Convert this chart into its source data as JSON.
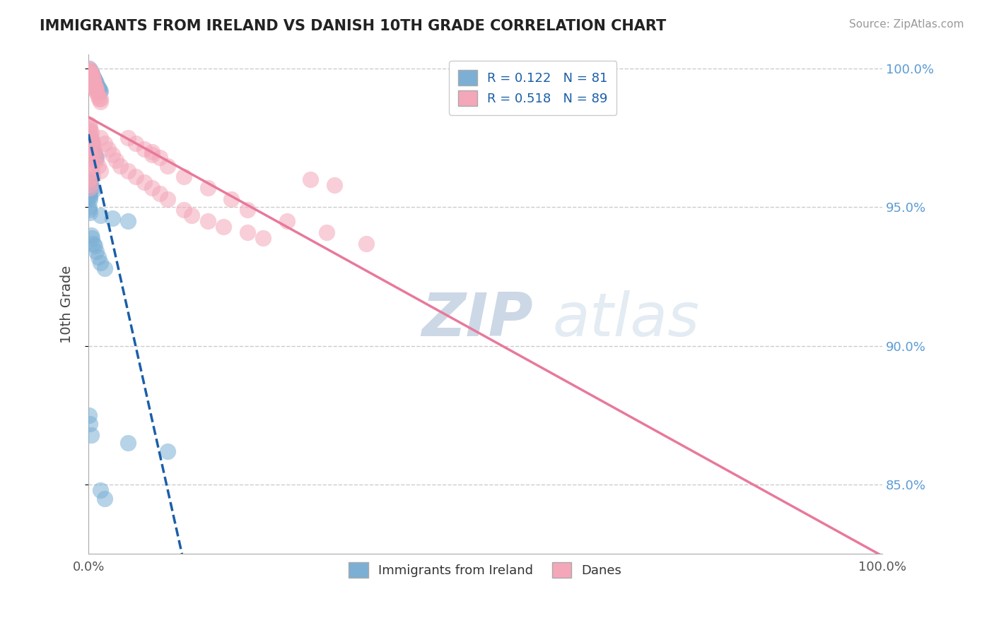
{
  "title": "IMMIGRANTS FROM IRELAND VS DANISH 10TH GRADE CORRELATION CHART",
  "source": "Source: ZipAtlas.com",
  "legend_blue_label": "Immigrants from Ireland",
  "legend_pink_label": "Danes",
  "ylabel": "10th Grade",
  "R_blue": 0.122,
  "N_blue": 81,
  "R_pink": 0.518,
  "N_pink": 89,
  "blue_color": "#7bafd4",
  "pink_color": "#f4a7b9",
  "blue_line_color": "#1a5fa8",
  "pink_line_color": "#e8799a",
  "watermark_zip": "ZIP",
  "watermark_atlas": "atlas",
  "background": "#ffffff",
  "xlim": [
    0.0,
    1.0
  ],
  "ylim": [
    0.825,
    1.005
  ],
  "yticks": [
    0.85,
    0.9,
    0.95,
    1.0
  ],
  "ytick_labels": [
    "85.0%",
    "90.0%",
    "95.0%",
    "100.0%"
  ],
  "blue_x": [
    0.001,
    0.001,
    0.001,
    0.001,
    0.001,
    0.001,
    0.002,
    0.002,
    0.002,
    0.002,
    0.003,
    0.003,
    0.003,
    0.003,
    0.004,
    0.004,
    0.004,
    0.005,
    0.005,
    0.005,
    0.006,
    0.006,
    0.006,
    0.007,
    0.007,
    0.008,
    0.008,
    0.009,
    0.009,
    0.01,
    0.01,
    0.011,
    0.012,
    0.013,
    0.014,
    0.015,
    0.001,
    0.001,
    0.002,
    0.002,
    0.003,
    0.003,
    0.004,
    0.005,
    0.005,
    0.006,
    0.007,
    0.008,
    0.009,
    0.01,
    0.001,
    0.001,
    0.002,
    0.003,
    0.004,
    0.005,
    0.001,
    0.001,
    0.002,
    0.002,
    0.001,
    0.001,
    0.002,
    0.015,
    0.03,
    0.05,
    0.003,
    0.004,
    0.006,
    0.008,
    0.01,
    0.012,
    0.015,
    0.02,
    0.001,
    0.002,
    0.003,
    0.05,
    0.1,
    0.015,
    0.02
  ],
  "blue_y": [
    1.0,
    0.999,
    0.999,
    0.999,
    0.998,
    0.998,
    0.999,
    0.998,
    0.998,
    0.997,
    0.999,
    0.998,
    0.997,
    0.997,
    0.998,
    0.997,
    0.997,
    0.997,
    0.997,
    0.996,
    0.997,
    0.996,
    0.996,
    0.996,
    0.995,
    0.996,
    0.995,
    0.995,
    0.994,
    0.995,
    0.994,
    0.994,
    0.993,
    0.993,
    0.992,
    0.992,
    0.975,
    0.974,
    0.975,
    0.973,
    0.974,
    0.972,
    0.972,
    0.973,
    0.971,
    0.97,
    0.97,
    0.969,
    0.968,
    0.968,
    0.96,
    0.959,
    0.959,
    0.958,
    0.957,
    0.956,
    0.955,
    0.954,
    0.954,
    0.953,
    0.95,
    0.949,
    0.948,
    0.947,
    0.946,
    0.945,
    0.94,
    0.939,
    0.937,
    0.936,
    0.934,
    0.932,
    0.93,
    0.928,
    0.875,
    0.872,
    0.868,
    0.865,
    0.862,
    0.848,
    0.845
  ],
  "pink_x": [
    0.001,
    0.001,
    0.001,
    0.001,
    0.001,
    0.002,
    0.002,
    0.002,
    0.002,
    0.003,
    0.003,
    0.003,
    0.004,
    0.004,
    0.004,
    0.005,
    0.005,
    0.005,
    0.006,
    0.006,
    0.007,
    0.007,
    0.008,
    0.008,
    0.009,
    0.01,
    0.01,
    0.011,
    0.012,
    0.013,
    0.015,
    0.015,
    0.001,
    0.001,
    0.002,
    0.002,
    0.003,
    0.003,
    0.004,
    0.005,
    0.006,
    0.007,
    0.008,
    0.01,
    0.012,
    0.015,
    0.001,
    0.001,
    0.002,
    0.003,
    0.004,
    0.005,
    0.001,
    0.001,
    0.002,
    0.015,
    0.02,
    0.025,
    0.03,
    0.035,
    0.04,
    0.05,
    0.06,
    0.07,
    0.08,
    0.09,
    0.1,
    0.12,
    0.13,
    0.15,
    0.17,
    0.2,
    0.22,
    0.05,
    0.06,
    0.07,
    0.08,
    0.1,
    0.12,
    0.15,
    0.18,
    0.2,
    0.25,
    0.3,
    0.35,
    0.28,
    0.31,
    0.08,
    0.09
  ],
  "pink_y": [
    1.0,
    0.999,
    0.999,
    0.998,
    0.998,
    0.999,
    0.999,
    0.998,
    0.997,
    0.998,
    0.997,
    0.997,
    0.998,
    0.997,
    0.996,
    0.997,
    0.996,
    0.995,
    0.996,
    0.995,
    0.995,
    0.994,
    0.994,
    0.993,
    0.993,
    0.993,
    0.992,
    0.991,
    0.99,
    0.989,
    0.989,
    0.988,
    0.98,
    0.978,
    0.979,
    0.977,
    0.977,
    0.975,
    0.974,
    0.973,
    0.971,
    0.97,
    0.968,
    0.967,
    0.965,
    0.963,
    0.97,
    0.968,
    0.967,
    0.965,
    0.963,
    0.961,
    0.96,
    0.958,
    0.957,
    0.975,
    0.973,
    0.971,
    0.969,
    0.967,
    0.965,
    0.963,
    0.961,
    0.959,
    0.957,
    0.955,
    0.953,
    0.949,
    0.947,
    0.945,
    0.943,
    0.941,
    0.939,
    0.975,
    0.973,
    0.971,
    0.969,
    0.965,
    0.961,
    0.957,
    0.953,
    0.949,
    0.945,
    0.941,
    0.937,
    0.96,
    0.958,
    0.97,
    0.968
  ]
}
